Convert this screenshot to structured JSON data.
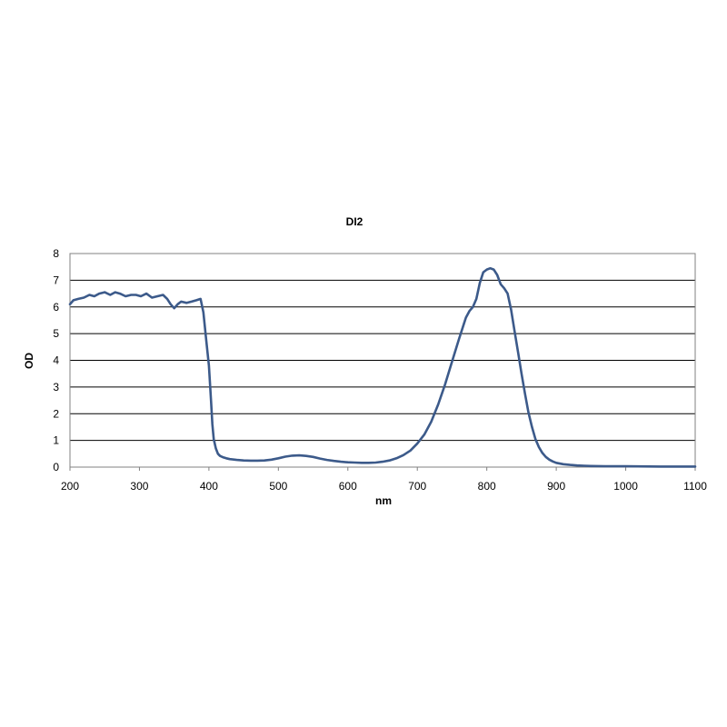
{
  "chart_data": {
    "type": "line",
    "title": "DI2",
    "xlabel": "nm",
    "ylabel": "OD",
    "xlim": [
      200,
      1100
    ],
    "ylim": [
      0,
      8
    ],
    "xticks": [
      200,
      300,
      400,
      500,
      600,
      700,
      800,
      900,
      1000,
      1100
    ],
    "yticks": [
      0,
      1,
      2,
      3,
      4,
      5,
      6,
      7,
      8
    ],
    "grid": "horizontal",
    "legend": "none",
    "colors": {
      "line": "#3c5a8a",
      "grid": "#000000",
      "frame": "#808080"
    },
    "series": [
      {
        "x": [
          200,
          205,
          212,
          220,
          228,
          235,
          242,
          250,
          258,
          265,
          272,
          280,
          288,
          295,
          302,
          310,
          318,
          326,
          334,
          340,
          345,
          350,
          355,
          360,
          368,
          375,
          382,
          388,
          392,
          396,
          400,
          403,
          405,
          407,
          410,
          413,
          416,
          420,
          425,
          430,
          440,
          450,
          460,
          470,
          480,
          490,
          500,
          510,
          520,
          530,
          540,
          550,
          560,
          570,
          580,
          590,
          600,
          610,
          620,
          630,
          640,
          650,
          660,
          670,
          680,
          690,
          700,
          710,
          720,
          730,
          740,
          750,
          760,
          770,
          775,
          780,
          785,
          790,
          795,
          800,
          805,
          810,
          815,
          820,
          825,
          830,
          835,
          840,
          845,
          850,
          855,
          860,
          865,
          870,
          875,
          880,
          885,
          890,
          895,
          900,
          910,
          920,
          930,
          940,
          950,
          970,
          1000,
          1050,
          1100
        ],
        "y": [
          6.1,
          6.25,
          6.3,
          6.35,
          6.45,
          6.4,
          6.5,
          6.55,
          6.45,
          6.55,
          6.5,
          6.4,
          6.45,
          6.45,
          6.4,
          6.5,
          6.35,
          6.4,
          6.45,
          6.3,
          6.1,
          5.95,
          6.1,
          6.2,
          6.15,
          6.2,
          6.25,
          6.3,
          5.8,
          4.8,
          3.8,
          2.5,
          1.6,
          1.05,
          0.7,
          0.5,
          0.42,
          0.37,
          0.33,
          0.3,
          0.27,
          0.25,
          0.24,
          0.24,
          0.25,
          0.28,
          0.33,
          0.39,
          0.43,
          0.44,
          0.42,
          0.38,
          0.32,
          0.27,
          0.23,
          0.2,
          0.18,
          0.17,
          0.16,
          0.16,
          0.17,
          0.2,
          0.25,
          0.33,
          0.45,
          0.62,
          0.88,
          1.22,
          1.7,
          2.35,
          3.1,
          3.95,
          4.8,
          5.6,
          5.85,
          6.0,
          6.3,
          6.9,
          7.3,
          7.4,
          7.45,
          7.4,
          7.2,
          6.85,
          6.7,
          6.5,
          5.9,
          5.1,
          4.3,
          3.5,
          2.75,
          2.05,
          1.5,
          1.05,
          0.75,
          0.53,
          0.38,
          0.28,
          0.21,
          0.16,
          0.11,
          0.08,
          0.06,
          0.05,
          0.04,
          0.03,
          0.03,
          0.02,
          0.02
        ]
      }
    ]
  }
}
